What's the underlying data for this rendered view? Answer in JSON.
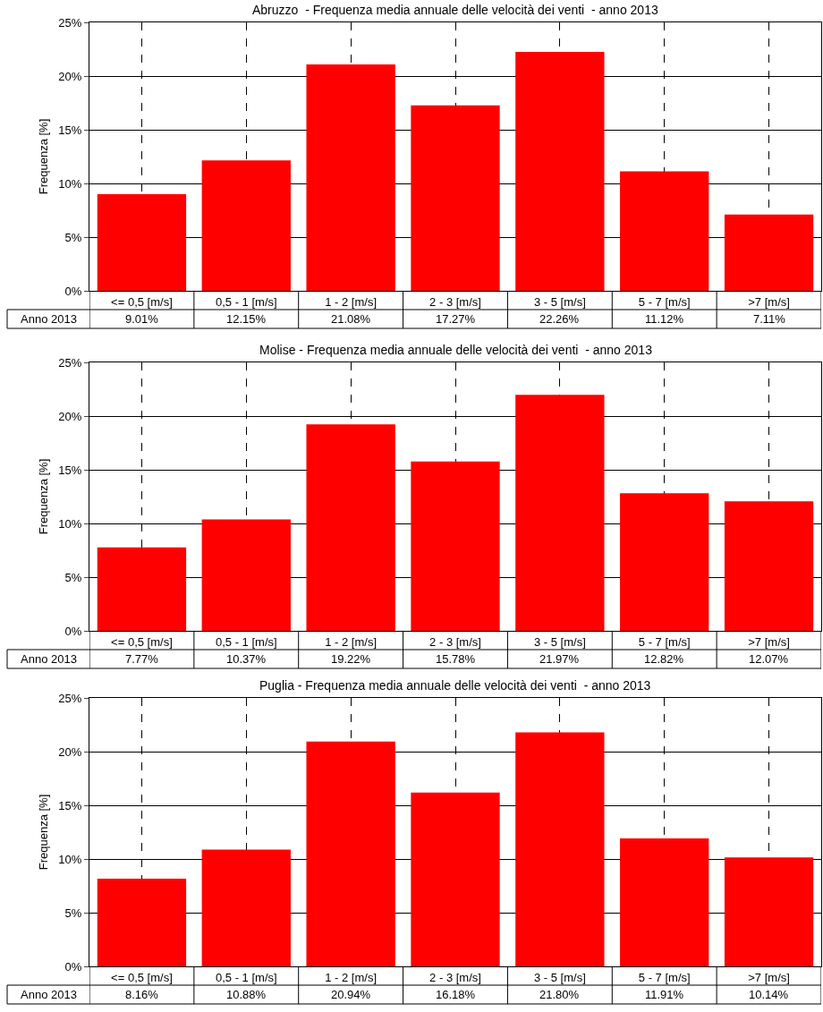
{
  "chart_data": [
    {
      "type": "bar",
      "title": "Abruzzo  - Frequenza media annuale delle velocità dei venti  - anno 2013",
      "ylabel": "Frequenza [%]",
      "categories": [
        "<= 0,5 [m/s]",
        "0,5 - 1 [m/s]",
        "1 - 2 [m/s]",
        "2 - 3 [m/s]",
        "3 - 5 [m/s]",
        "5 - 7 [m/s]",
        ">7 [m/s]"
      ],
      "series": [
        {
          "name": "Anno 2013",
          "color": "#ff0000",
          "values": [
            9.01,
            12.15,
            21.08,
            17.27,
            22.26,
            11.12,
            7.11
          ],
          "value_labels": [
            "9.01%",
            "12.15%",
            "21.08%",
            "17.27%",
            "22.26%",
            "11.12%",
            "7.11%"
          ]
        }
      ],
      "ylim": [
        0,
        25
      ],
      "yticks": [
        {
          "value": 0,
          "label": "0%"
        },
        {
          "value": 5,
          "label": "5%"
        },
        {
          "value": 10,
          "label": "10%"
        },
        {
          "value": 15,
          "label": "15%"
        },
        {
          "value": 20,
          "label": "20%"
        },
        {
          "value": 25,
          "label": "25%"
        }
      ],
      "grid": true
    },
    {
      "type": "bar",
      "title": "Molise - Frequenza media annuale delle velocità dei venti  - anno 2013",
      "ylabel": "Frequenza [%]",
      "categories": [
        "<= 0,5 [m/s]",
        "0,5 - 1 [m/s]",
        "1 - 2 [m/s]",
        "2 - 3 [m/s]",
        "3 - 5 [m/s]",
        "5 - 7 [m/s]",
        ">7 [m/s]"
      ],
      "series": [
        {
          "name": "Anno 2013",
          "color": "#ff0000",
          "values": [
            7.77,
            10.37,
            19.22,
            15.78,
            21.97,
            12.82,
            12.07
          ],
          "value_labels": [
            "7.77%",
            "10.37%",
            "19.22%",
            "15.78%",
            "21.97%",
            "12.82%",
            "12.07%"
          ]
        }
      ],
      "ylim": [
        0,
        25
      ],
      "yticks": [
        {
          "value": 0,
          "label": "0%"
        },
        {
          "value": 5,
          "label": "5%"
        },
        {
          "value": 10,
          "label": "10%"
        },
        {
          "value": 15,
          "label": "15%"
        },
        {
          "value": 20,
          "label": "20%"
        },
        {
          "value": 25,
          "label": "25%"
        }
      ],
      "grid": true
    },
    {
      "type": "bar",
      "title": "Puglia - Frequenza media annuale delle velocità dei venti  - anno 2013",
      "ylabel": "Frequenza [%]",
      "categories": [
        "<= 0,5 [m/s]",
        "0,5 - 1 [m/s]",
        "1 - 2 [m/s]",
        "2 - 3 [m/s]",
        "3 - 5 [m/s]",
        "5 - 7 [m/s]",
        ">7 [m/s]"
      ],
      "series": [
        {
          "name": "Anno 2013",
          "color": "#ff0000",
          "values": [
            8.16,
            10.88,
            20.94,
            16.18,
            21.8,
            11.91,
            10.14
          ],
          "value_labels": [
            "8.16%",
            "10.88%",
            "20.94%",
            "16.18%",
            "21.80%",
            "11.91%",
            "10.14%"
          ]
        }
      ],
      "ylim": [
        0,
        25
      ],
      "yticks": [
        {
          "value": 0,
          "label": "0%"
        },
        {
          "value": 5,
          "label": "5%"
        },
        {
          "value": 10,
          "label": "10%"
        },
        {
          "value": 15,
          "label": "15%"
        },
        {
          "value": 20,
          "label": "20%"
        },
        {
          "value": 25,
          "label": "25%"
        }
      ],
      "grid": true
    }
  ]
}
